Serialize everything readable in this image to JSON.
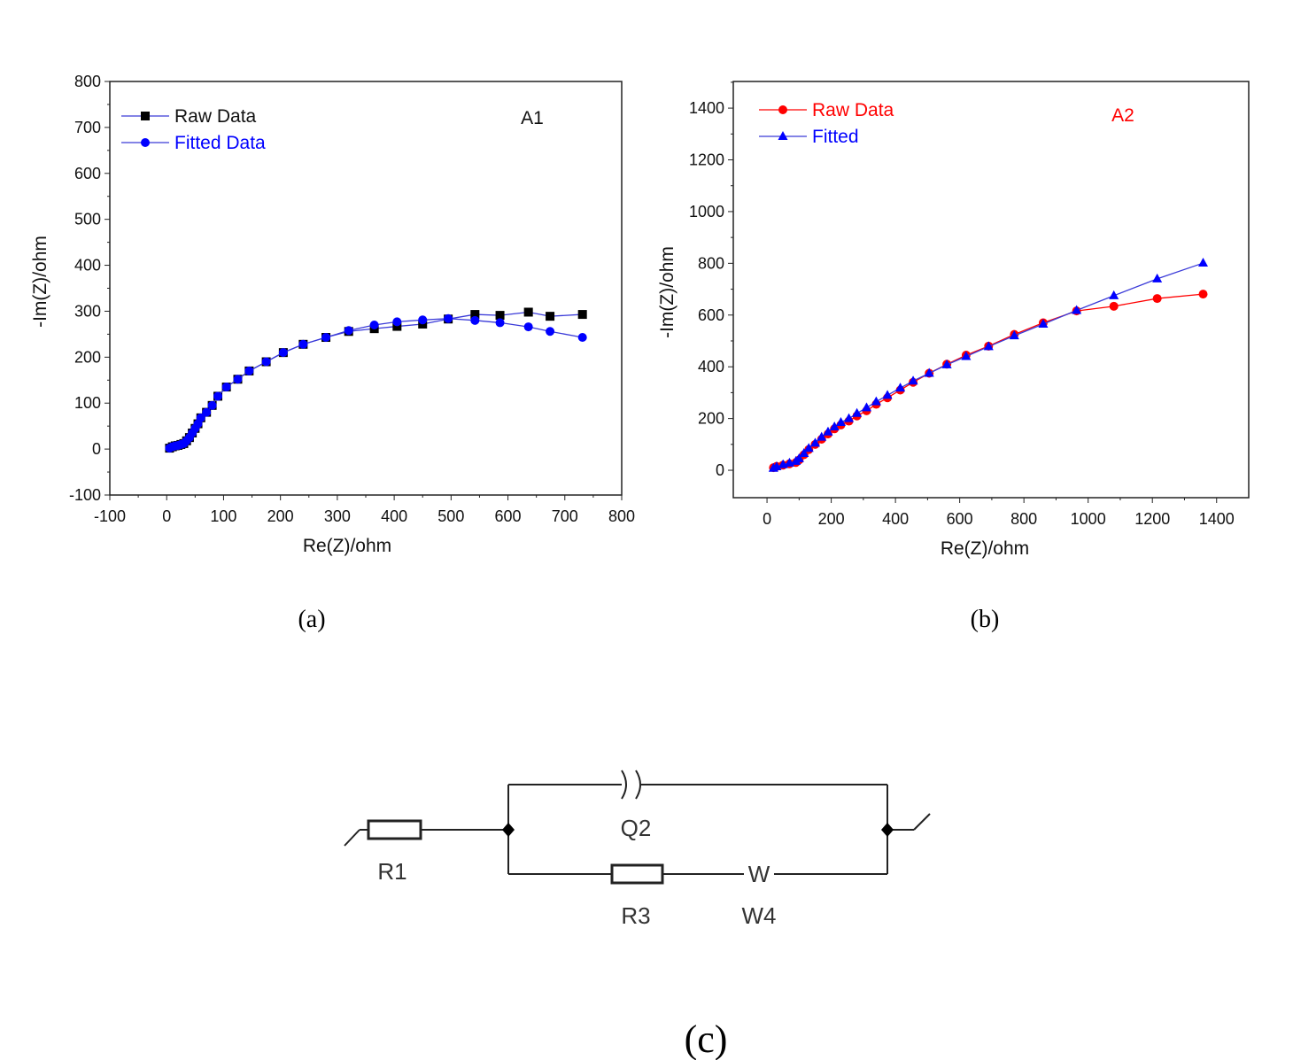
{
  "chart_data": [
    {
      "type": "scatter",
      "panel": "(a)",
      "annotation": "A1",
      "xlabel": "Re(Z)/ohm",
      "ylabel": "-Im(Z)/ohm",
      "xlim": [
        -100,
        800
      ],
      "ylim": [
        -100,
        800
      ],
      "xticks": [
        -100,
        0,
        100,
        200,
        300,
        400,
        500,
        600,
        700,
        800
      ],
      "yticks": [
        -100,
        0,
        100,
        200,
        300,
        400,
        500,
        600,
        700,
        800
      ],
      "legend_placement": "top-left",
      "grid": false,
      "series": [
        {
          "name": "Raw Data",
          "marker": "square",
          "marker_color": "#000000",
          "line_color": "#3a3ad8",
          "x": [
            5,
            10,
            15,
            20,
            25,
            30,
            35,
            40,
            45,
            50,
            55,
            60,
            70,
            80,
            90,
            105,
            125,
            145,
            175,
            205,
            240,
            280,
            320,
            365,
            405,
            450,
            495,
            542,
            586,
            636,
            674,
            731
          ],
          "y": [
            2,
            5,
            7,
            8,
            10,
            12,
            18,
            25,
            35,
            45,
            55,
            68,
            80,
            95,
            115,
            135,
            152,
            170,
            190,
            210,
            228,
            243,
            256,
            262,
            267,
            272,
            283,
            293,
            291,
            298,
            289,
            293
          ]
        },
        {
          "name": "Fitted Data",
          "marker": "circle",
          "marker_color": "#0000ff",
          "line_color": "#3a3ad8",
          "x": [
            5,
            10,
            15,
            20,
            25,
            30,
            35,
            40,
            45,
            50,
            55,
            60,
            70,
            80,
            90,
            105,
            125,
            145,
            175,
            205,
            240,
            280,
            320,
            365,
            405,
            450,
            495,
            542,
            586,
            636,
            674,
            731
          ],
          "y": [
            2,
            5,
            7,
            8,
            10,
            12,
            18,
            25,
            35,
            45,
            55,
            68,
            80,
            95,
            115,
            135,
            152,
            170,
            190,
            210,
            228,
            243,
            258,
            270,
            277,
            281,
            284,
            280,
            275,
            266,
            256,
            243
          ]
        }
      ]
    },
    {
      "type": "scatter",
      "panel": "(b)",
      "annotation": "A2",
      "annotation_color": "#ff0000",
      "xlabel": "Re(Z)/ohm",
      "ylabel": "-Im(Z)/ohm",
      "xlim": [
        -105,
        1500
      ],
      "ylim": [
        -106,
        1503
      ],
      "xticks": [
        0,
        200,
        400,
        600,
        800,
        1000,
        1200,
        1400
      ],
      "yticks": [
        0,
        200,
        400,
        600,
        800,
        1000,
        1200,
        1400
      ],
      "legend_placement": "top-left",
      "grid": false,
      "series": [
        {
          "name": "Raw Data",
          "marker": "circle",
          "marker_color": "#ff0000",
          "line_color": "#ff0000",
          "label_color": "#ff0000",
          "x": [
            20,
            30,
            50,
            70,
            90,
            100,
            115,
            130,
            150,
            170,
            190,
            210,
            230,
            255,
            280,
            310,
            340,
            375,
            415,
            455,
            505,
            560,
            620,
            690,
            770,
            860,
            964,
            1080,
            1215,
            1358
          ],
          "y": [
            10,
            15,
            20,
            25,
            30,
            40,
            60,
            80,
            100,
            120,
            140,
            160,
            175,
            190,
            210,
            230,
            255,
            280,
            310,
            340,
            375,
            410,
            445,
            480,
            525,
            570,
            616,
            634,
            664,
            681
          ]
        },
        {
          "name": "Fitted",
          "marker": "triangle",
          "marker_color": "#0000ff",
          "line_color": "#3a3ad8",
          "label_color": "#0000ff",
          "x": [
            20,
            30,
            50,
            70,
            90,
            100,
            115,
            130,
            150,
            170,
            190,
            210,
            230,
            255,
            280,
            310,
            340,
            375,
            415,
            455,
            505,
            560,
            620,
            690,
            770,
            860,
            964,
            1080,
            1215,
            1358
          ],
          "y": [
            8,
            14,
            22,
            28,
            35,
            45,
            65,
            85,
            105,
            128,
            148,
            168,
            185,
            200,
            220,
            242,
            265,
            290,
            318,
            345,
            375,
            408,
            440,
            478,
            520,
            565,
            618,
            675,
            740,
            801
          ]
        }
      ]
    }
  ],
  "captions": {
    "a": "(a)",
    "b": "(b)",
    "c": "(c)"
  },
  "circuit": {
    "labels": {
      "r1": "R1",
      "q2": "Q2",
      "r3": "R3",
      "w4": "W4",
      "w_symbol": "W"
    }
  }
}
